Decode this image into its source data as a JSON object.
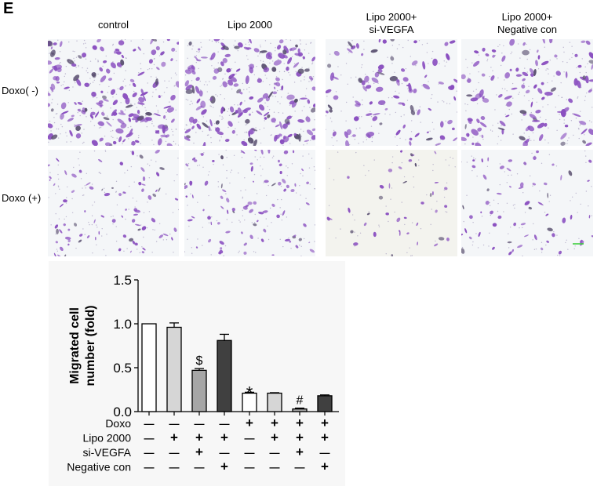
{
  "panel_label": "E",
  "columns": [
    "control",
    "Lipo 2000",
    "Lipo 2000+\nsi-VEGFA",
    "Lipo 2000+\nNegative con"
  ],
  "rows": [
    "Doxo( -)",
    "Doxo (+)"
  ],
  "colors": {
    "stain": "#8a4fc0",
    "scale_bar": "#33cc33"
  },
  "chart_data": {
    "type": "bar",
    "title": "",
    "xlabel": "",
    "ylabel": "Migrated cell\nnumber (fold)",
    "ylim": [
      0,
      1.5
    ],
    "yticks": [
      "0.0",
      "0.5",
      "1.0",
      "1.5"
    ],
    "grid": false,
    "values": [
      1.0,
      0.96,
      0.47,
      0.81,
      0.21,
      0.21,
      0.03,
      0.18
    ],
    "errors": [
      0,
      0.05,
      0.02,
      0.07,
      0.01,
      0.005,
      0.01,
      0.01
    ],
    "bar_colors": [
      "#ffffff",
      "#d6d6d6",
      "#a6a6a6",
      "#404040",
      "#ffffff",
      "#d6d6d6",
      "#a6a6a6",
      "#404040"
    ],
    "annotations": [
      "",
      "",
      "$",
      "",
      "*",
      "",
      "#",
      ""
    ],
    "conditions": [
      {
        "label": "Doxo",
        "signs": [
          "—",
          "—",
          "—",
          "—",
          "+",
          "+",
          "+",
          "+"
        ]
      },
      {
        "label": "Lipo 2000",
        "signs": [
          "—",
          "+",
          "+",
          "+",
          "—",
          "+",
          "+",
          "+"
        ]
      },
      {
        "label": "si-VEGFA",
        "signs": [
          "—",
          "—",
          "+",
          "—",
          "—",
          "—",
          "+",
          "—"
        ]
      },
      {
        "label": "Negative con",
        "signs": [
          "—",
          "—",
          "—",
          "+",
          "—",
          "—",
          "—",
          "+"
        ]
      }
    ]
  }
}
